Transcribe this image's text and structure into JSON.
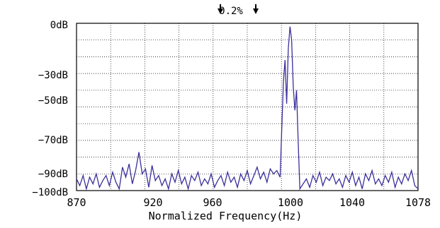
{
  "chart_data": {
    "type": "line",
    "xlabel": "Normalized Frequency(Hz)",
    "ylabel": "",
    "title": "",
    "annotation": "0.2%",
    "xlim": [
      870,
      1078
    ],
    "ylim": [
      -100,
      0
    ],
    "x_ticks": [
      870,
      920,
      960,
      1000,
      1040,
      1078
    ],
    "x_tick_labels": [
      "870",
      "920",
      "960",
      "1000",
      "1040",
      "1078"
    ],
    "y_ticks": [
      0,
      -30,
      -50,
      -70,
      -90,
      -100
    ],
    "y_tick_labels": [
      "0dB",
      "−30dB",
      "−50dB",
      "−70dB",
      "−90dB",
      "−100dB"
    ],
    "grid": true,
    "line_color": "#3b2f9a",
    "series": [
      {
        "x": [
          870,
          872,
          874,
          876,
          878,
          880,
          882,
          884,
          886,
          888,
          890,
          892,
          894,
          896,
          898,
          900,
          902,
          904,
          906,
          908,
          910,
          912,
          914,
          916,
          918,
          920,
          922,
          924,
          926,
          928,
          930,
          932,
          934,
          936,
          938,
          940,
          942,
          944,
          946,
          948,
          950,
          952,
          954,
          956,
          958,
          960,
          962,
          964,
          966,
          968,
          970,
          972,
          974,
          976,
          978,
          980,
          982,
          984,
          986,
          988,
          990,
          992,
          994,
          996,
          997,
          998,
          999,
          1000,
          1001,
          1002,
          1003,
          1004,
          1005,
          1006,
          1008,
          1010,
          1012,
          1014,
          1016,
          1018,
          1020,
          1022,
          1024,
          1026,
          1028,
          1030,
          1032,
          1034,
          1036,
          1038,
          1040,
          1042,
          1044,
          1046,
          1048,
          1050,
          1052,
          1054,
          1056,
          1058,
          1060,
          1062,
          1064,
          1066,
          1068,
          1070,
          1072,
          1074,
          1076,
          1078
        ],
        "values": [
          -93,
          -97,
          -91,
          -99,
          -92,
          -96,
          -90,
          -98,
          -94,
          -91,
          -97,
          -89,
          -95,
          -99,
          -86,
          -92,
          -84,
          -96,
          -88,
          -77,
          -90,
          -87,
          -98,
          -85,
          -94,
          -91,
          -97,
          -93,
          -99,
          -90,
          -95,
          -88,
          -96,
          -92,
          -99,
          -91,
          -94,
          -89,
          -97,
          -93,
          -96,
          -90,
          -98,
          -94,
          -91,
          -97,
          -89,
          -95,
          -92,
          -98,
          -90,
          -94,
          -88,
          -96,
          -91,
          -86,
          -93,
          -89,
          -95,
          -87,
          -90,
          -88,
          -92,
          -35,
          -22,
          -48,
          -15,
          -2,
          -10,
          -38,
          -52,
          -40,
          -70,
          -99,
          -96,
          -93,
          -98,
          -91,
          -95,
          -89,
          -97,
          -92,
          -94,
          -90,
          -96,
          -93,
          -98,
          -91,
          -95,
          -89,
          -97,
          -92,
          -99,
          -90,
          -94,
          -88,
          -96,
          -93,
          -97,
          -91,
          -95,
          -89,
          -98,
          -92,
          -96,
          -90,
          -94,
          -88,
          -97,
          -99
        ]
      }
    ]
  }
}
